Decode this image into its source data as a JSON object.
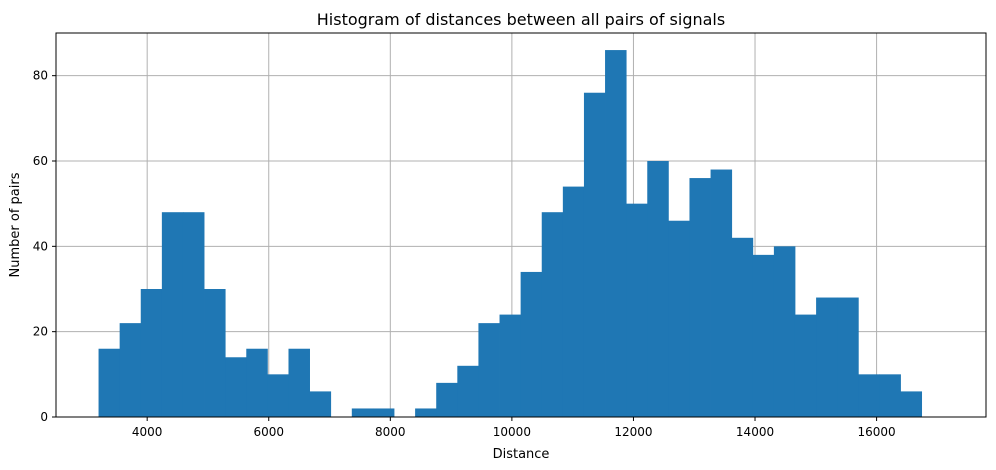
{
  "chart_data": {
    "type": "bar",
    "title": "Histogram of distances between all pairs of signals",
    "xlabel": "Distance",
    "ylabel": "Number of pairs",
    "xlim": [
      2500,
      17800
    ],
    "ylim": [
      0,
      90
    ],
    "grid": true,
    "bar_color": "#1f77b4",
    "bin_width": 347.2,
    "bin_edges_start": 3200,
    "counts": [
      16,
      22,
      30,
      48,
      48,
      30,
      14,
      16,
      10,
      16,
      6,
      0,
      2,
      2,
      0,
      2,
      8,
      12,
      22,
      24,
      34,
      48,
      54,
      76,
      86,
      50,
      60,
      46,
      56,
      58,
      42,
      38,
      40,
      24,
      28,
      28,
      10,
      10,
      6
    ],
    "x_ticks": [
      4000,
      6000,
      8000,
      10000,
      12000,
      14000,
      16000
    ],
    "x_tick_labels": [
      "4000",
      "6000",
      "8000",
      "10000",
      "12000",
      "14000",
      "16000"
    ],
    "y_ticks": [
      0,
      20,
      40,
      60,
      80
    ],
    "y_tick_labels": [
      "0",
      "20",
      "40",
      "60",
      "80"
    ]
  }
}
